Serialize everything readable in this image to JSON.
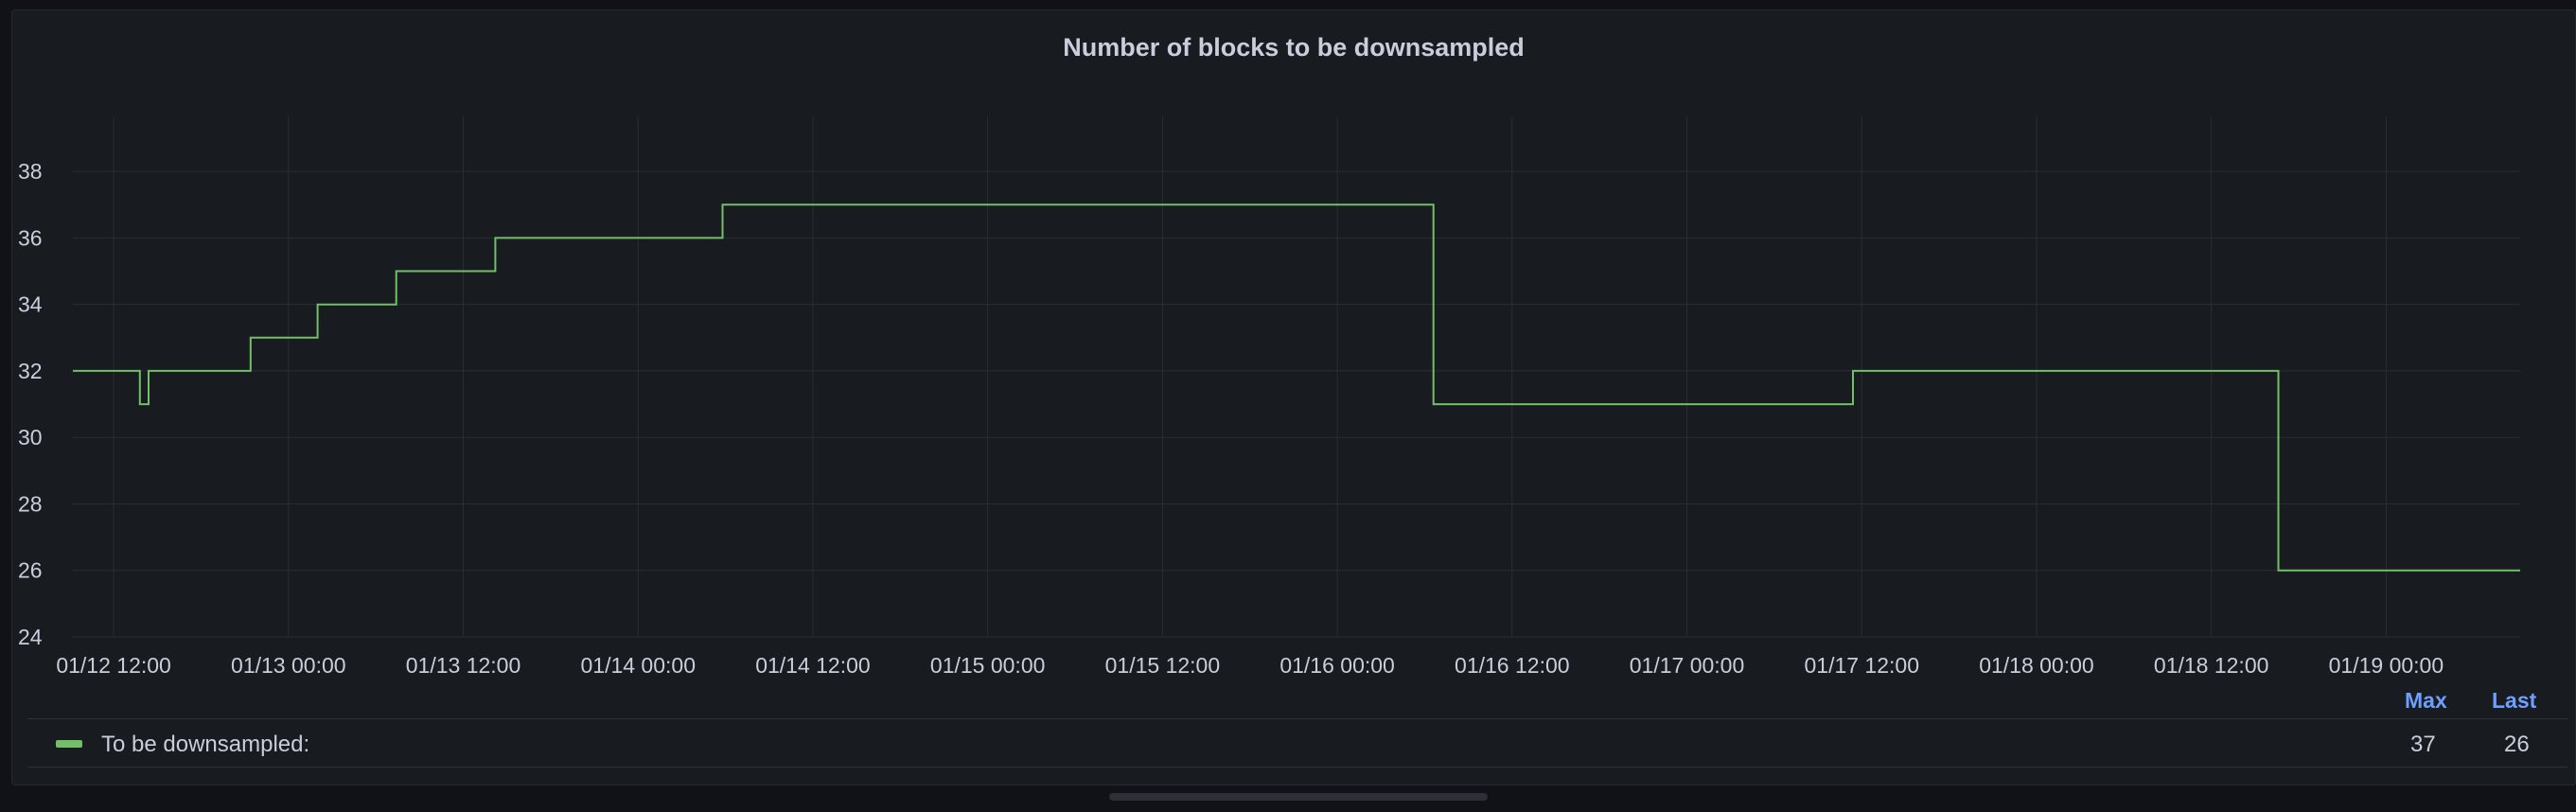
{
  "panel": {
    "title": "Number of blocks to be downsampled"
  },
  "chart_data": {
    "type": "line",
    "title": "Number of blocks to be downsampled",
    "xlabel": "",
    "ylabel": "",
    "x_tick_labels": [
      "01/12 12:00",
      "01/13 00:00",
      "01/13 12:00",
      "01/14 00:00",
      "01/14 12:00",
      "01/15 00:00",
      "01/15 12:00",
      "01/16 00:00",
      "01/16 12:00",
      "01/17 00:00",
      "01/17 12:00",
      "01/18 00:00",
      "01/18 12:00",
      "01/19 00:00"
    ],
    "y_ticks": [
      24,
      26,
      28,
      30,
      32,
      34,
      36,
      38
    ],
    "ylim": [
      24,
      39
    ],
    "xlim_hours": [
      -2.8,
      165.2
    ],
    "grid": true,
    "line_color": "#73bf69",
    "series": [
      {
        "name": "To be downsampled:",
        "step": true,
        "hours_since_01_12_12_00": [
          -2.8,
          1.8,
          2.4,
          9.4,
          14.0,
          19.4,
          26.2,
          41.8,
          90.6,
          119.4,
          148.6,
          165.2
        ],
        "values": [
          32,
          31,
          32,
          33,
          34,
          35,
          36,
          37,
          31,
          32,
          26,
          26
        ]
      }
    ]
  },
  "legend": {
    "headers": {
      "max": "Max",
      "last": "Last"
    },
    "series_name": "To be downsampled:",
    "max": "37",
    "last": "26"
  }
}
